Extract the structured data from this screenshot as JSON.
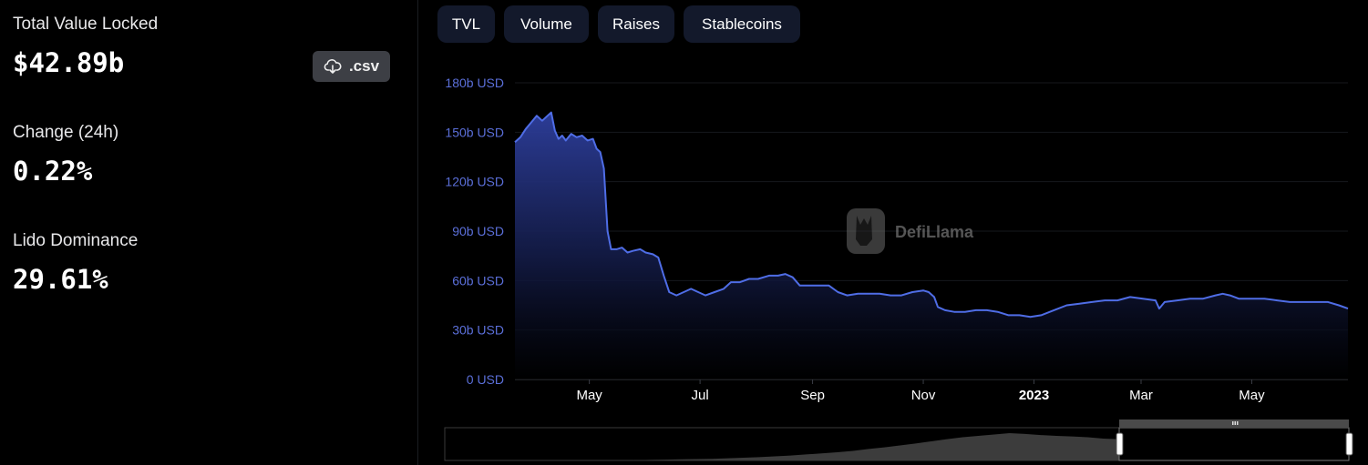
{
  "stats": {
    "tvl_label": "Total Value Locked",
    "tvl_value": "$42.89b",
    "change_label": "Change (24h)",
    "change_value": "0.22%",
    "dominance_label": "Lido Dominance",
    "dominance_value": "29.61%"
  },
  "download": {
    "label": ".csv",
    "icon": "cloud-download-icon"
  },
  "tabs": [
    "TVL",
    "Volume",
    "Raises",
    "Stablecoins"
  ],
  "watermark": {
    "text": "DefiLlama",
    "icon": "llama-icon"
  },
  "colors": {
    "line": "#4f6de6",
    "axis_label": "#5b6fd9",
    "tab_bg": "#13192b"
  },
  "chart_data": {
    "type": "area",
    "ylabel": "",
    "xlabel": "",
    "unit": "USD",
    "ylim": [
      0,
      180
    ],
    "ytick_labels": [
      "0 USD",
      "30b USD",
      "60b USD",
      "90b USD",
      "120b USD",
      "150b USD",
      "180b USD"
    ],
    "yticks": [
      0,
      30,
      60,
      90,
      120,
      150,
      180
    ],
    "x_range": [
      "2022-03-21",
      "2023-06-23"
    ],
    "xtick_labels": [
      {
        "date": "2022-05-01",
        "label": "May"
      },
      {
        "date": "2022-07-01",
        "label": "Jul"
      },
      {
        "date": "2022-09-01",
        "label": "Sep"
      },
      {
        "date": "2022-11-01",
        "label": "Nov"
      },
      {
        "date": "2023-01-01",
        "label": "2023"
      },
      {
        "date": "2023-03-01",
        "label": "Mar"
      },
      {
        "date": "2023-05-01",
        "label": "May"
      }
    ],
    "series": [
      {
        "name": "",
        "points": [
          [
            "2022-03-21",
            144
          ],
          [
            "2022-03-24",
            147
          ],
          [
            "2022-03-27",
            152
          ],
          [
            "2022-03-30",
            156
          ],
          [
            "2022-04-02",
            160
          ],
          [
            "2022-04-05",
            157
          ],
          [
            "2022-04-08",
            160
          ],
          [
            "2022-04-10",
            162
          ],
          [
            "2022-04-12",
            151
          ],
          [
            "2022-04-14",
            146
          ],
          [
            "2022-04-16",
            148
          ],
          [
            "2022-04-18",
            145
          ],
          [
            "2022-04-21",
            149
          ],
          [
            "2022-04-24",
            147
          ],
          [
            "2022-04-27",
            148
          ],
          [
            "2022-04-30",
            145
          ],
          [
            "2022-05-03",
            146
          ],
          [
            "2022-05-05",
            140
          ],
          [
            "2022-05-07",
            138
          ],
          [
            "2022-05-09",
            128
          ],
          [
            "2022-05-11",
            90
          ],
          [
            "2022-05-13",
            79
          ],
          [
            "2022-05-16",
            79
          ],
          [
            "2022-05-19",
            80
          ],
          [
            "2022-05-22",
            77
          ],
          [
            "2022-05-25",
            78
          ],
          [
            "2022-05-29",
            79
          ],
          [
            "2022-06-01",
            77
          ],
          [
            "2022-06-05",
            76
          ],
          [
            "2022-06-08",
            74
          ],
          [
            "2022-06-11",
            63
          ],
          [
            "2022-06-14",
            53
          ],
          [
            "2022-06-18",
            51
          ],
          [
            "2022-06-22",
            53
          ],
          [
            "2022-06-26",
            55
          ],
          [
            "2022-06-30",
            53
          ],
          [
            "2022-07-04",
            51
          ],
          [
            "2022-07-09",
            53
          ],
          [
            "2022-07-14",
            55
          ],
          [
            "2022-07-18",
            59
          ],
          [
            "2022-07-23",
            59
          ],
          [
            "2022-07-28",
            61
          ],
          [
            "2022-08-02",
            61
          ],
          [
            "2022-08-08",
            63
          ],
          [
            "2022-08-13",
            63
          ],
          [
            "2022-08-17",
            64
          ],
          [
            "2022-08-21",
            62
          ],
          [
            "2022-08-25",
            57
          ],
          [
            "2022-08-30",
            57
          ],
          [
            "2022-09-05",
            57
          ],
          [
            "2022-09-10",
            57
          ],
          [
            "2022-09-15",
            53
          ],
          [
            "2022-09-20",
            51
          ],
          [
            "2022-09-26",
            52
          ],
          [
            "2022-10-02",
            52
          ],
          [
            "2022-10-08",
            52
          ],
          [
            "2022-10-14",
            51
          ],
          [
            "2022-10-20",
            51
          ],
          [
            "2022-10-26",
            53
          ],
          [
            "2022-11-01",
            54
          ],
          [
            "2022-11-04",
            53
          ],
          [
            "2022-11-07",
            50
          ],
          [
            "2022-11-09",
            44
          ],
          [
            "2022-11-13",
            42
          ],
          [
            "2022-11-18",
            41
          ],
          [
            "2022-11-24",
            41
          ],
          [
            "2022-11-30",
            42
          ],
          [
            "2022-12-06",
            42
          ],
          [
            "2022-12-12",
            41
          ],
          [
            "2022-12-18",
            39
          ],
          [
            "2022-12-24",
            39
          ],
          [
            "2022-12-30",
            38
          ],
          [
            "2023-01-05",
            39
          ],
          [
            "2023-01-12",
            42
          ],
          [
            "2023-01-19",
            45
          ],
          [
            "2023-01-26",
            46
          ],
          [
            "2023-02-02",
            47
          ],
          [
            "2023-02-09",
            48
          ],
          [
            "2023-02-16",
            48
          ],
          [
            "2023-02-23",
            50
          ],
          [
            "2023-03-02",
            49
          ],
          [
            "2023-03-09",
            48
          ],
          [
            "2023-03-11",
            43
          ],
          [
            "2023-03-14",
            47
          ],
          [
            "2023-03-21",
            48
          ],
          [
            "2023-03-28",
            49
          ],
          [
            "2023-04-04",
            49
          ],
          [
            "2023-04-11",
            51
          ],
          [
            "2023-04-15",
            52
          ],
          [
            "2023-04-19",
            51
          ],
          [
            "2023-04-24",
            49
          ],
          [
            "2023-05-01",
            49
          ],
          [
            "2023-05-08",
            49
          ],
          [
            "2023-05-15",
            48
          ],
          [
            "2023-05-22",
            47
          ],
          [
            "2023-05-29",
            47
          ],
          [
            "2023-06-05",
            47
          ],
          [
            "2023-06-12",
            47
          ],
          [
            "2023-06-18",
            45
          ],
          [
            "2023-06-23",
            43
          ]
        ]
      }
    ],
    "brush": {
      "selected_range": [
        "2022-03-21",
        "2023-06-23"
      ],
      "overview_note": ""
    }
  }
}
